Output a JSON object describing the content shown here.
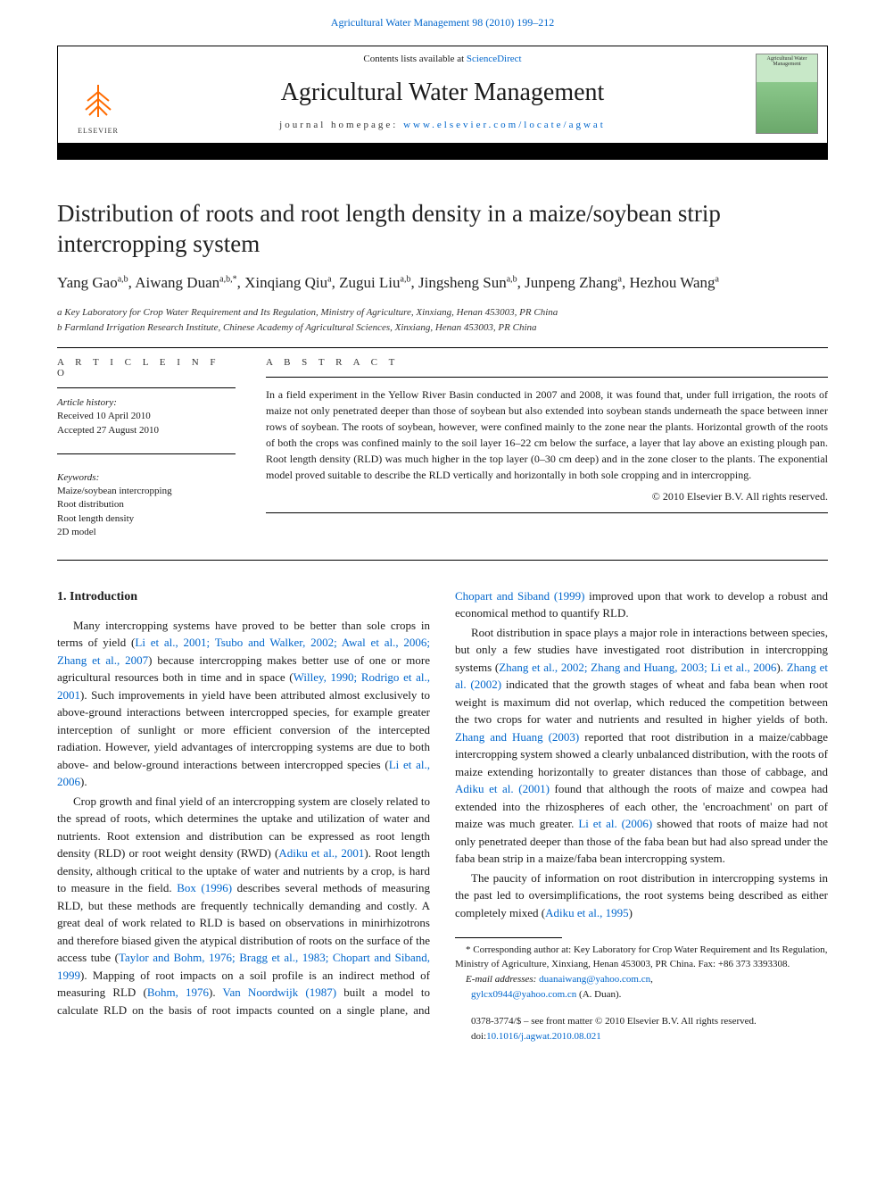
{
  "top_citation": "Agricultural Water Management 98 (2010) 199–212",
  "header": {
    "contents_prefix": "Contents lists available at ",
    "contents_link": "ScienceDirect",
    "journal": "Agricultural Water Management",
    "homepage_prefix": "journal homepage: ",
    "homepage_link": "www.elsevier.com/locate/agwat",
    "publisher": "ELSEVIER",
    "cover_label": "Agricultural Water Management"
  },
  "title": "Distribution of roots and root length density in a maize/soybean strip intercropping system",
  "authors_html": "Yang Gao<sup>a,b</sup>, Aiwang Duan<sup>a,b,*</sup>, Xinqiang Qiu<sup>a</sup>, Zugui Liu<sup>a,b</sup>, Jingsheng Sun<sup>a,b</sup>, Junpeng Zhang<sup>a</sup>, Hezhou Wang<sup>a</sup>",
  "affiliations": [
    "a Key Laboratory for Crop Water Requirement and Its Regulation, Ministry of Agriculture, Xinxiang, Henan 453003, PR China",
    "b Farmland Irrigation Research Institute, Chinese Academy of Agricultural Sciences, Xinxiang, Henan 453003, PR China"
  ],
  "labels": {
    "article_info": "A R T I C L E   I N F O",
    "abstract": "A B S T R A C T",
    "history": "Article history:",
    "keywords": "Keywords:"
  },
  "history": [
    "Received 10 April 2010",
    "Accepted 27 August 2010"
  ],
  "keywords": [
    "Maize/soybean intercropping",
    "Root distribution",
    "Root length density",
    "2D model"
  ],
  "abstract": "In a field experiment in the Yellow River Basin conducted in 2007 and 2008, it was found that, under full irrigation, the roots of maize not only penetrated deeper than those of soybean but also extended into soybean stands underneath the space between inner rows of soybean. The roots of soybean, however, were confined mainly to the zone near the plants. Horizontal growth of the roots of both the crops was confined mainly to the soil layer 16–22 cm below the surface, a layer that lay above an existing plough pan. Root length density (RLD) was much higher in the top layer (0–30 cm deep) and in the zone closer to the plants. The exponential model proved suitable to describe the RLD vertically and horizontally in both sole cropping and in intercropping.",
  "copyright": "© 2010 Elsevier B.V. All rights reserved.",
  "section_heading": "1.  Introduction",
  "paragraphs": {
    "p1_a": "Many intercropping systems have proved to be better than sole crops in terms of yield (",
    "p1_l1": "Li et al., 2001; Tsubo and Walker, 2002; Awal et al., 2006; Zhang et al., 2007",
    "p1_b": ") because intercropping makes better use of one or more agricultural resources both in time and in space (",
    "p1_l2": "Willey, 1990; Rodrigo et al., 2001",
    "p1_c": "). Such improvements in yield have been attributed almost exclusively to above-ground interactions between intercropped species, for example greater interception of sunlight or more efficient conversion of the intercepted radiation. However, yield advantages of intercropping systems are due to both above- and below-ground interactions between intercropped species (",
    "p1_l3": "Li et al., 2006",
    "p1_d": ").",
    "p2_a": "Crop growth and final yield of an intercropping system are closely related to the spread of roots, which determines the uptake and utilization of water and nutrients. Root extension and distribution can be expressed as root length density (RLD) or root weight density (RWD) (",
    "p2_l1": "Adiku et al., 2001",
    "p2_b": "). Root length density, although critical to the uptake of water and nutrients by a crop, is hard to measure in the field. ",
    "p2_l2": "Box (1996)",
    "p2_c": " describes several methods of measuring RLD, but these methods are frequently technically demanding and costly. A great deal of work related to RLD is based on observations in minirhizotrons and therefore biased given the atypical distribution of roots on the surface of the access tube (",
    "p2_l3": "Taylor and Bohm, 1976; Bragg et al., 1983; Chopart and Siband, 1999",
    "p2_d": "). Mapping of root impacts on a soil profile is an indirect method of measuring RLD (",
    "p2_l4": "Bohm, 1976",
    "p2_e": "). ",
    "p2_l5": "Van Noordwijk (1987)",
    "p2_f": " built a model to calculate RLD on the basis of root impacts counted on a single plane, and ",
    "p2_l6": "Chopart and Siband (1999)",
    "p2_g": " improved upon that work to develop a robust and economical method to quantify RLD.",
    "p3_a": "Root distribution in space plays a major role in interactions between species, but only a few studies have investigated root distribution in intercropping systems (",
    "p3_l1": "Zhang et al., 2002; Zhang and Huang, 2003; Li et al., 2006",
    "p3_b": "). ",
    "p3_l2": "Zhang et al. (2002)",
    "p3_c": " indicated that the growth stages of wheat and faba bean when root weight is maximum did not overlap, which reduced the competition between the two crops for water and nutrients and resulted in higher yields of both. ",
    "p3_l3": "Zhang and Huang (2003)",
    "p3_d": " reported that root distribution in a maize/cabbage intercropping system showed a clearly unbalanced distribution, with the roots of maize extending horizontally to greater distances than those of cabbage, and ",
    "p3_l4": "Adiku et al. (2001)",
    "p3_e": " found that although the roots of maize and cowpea had extended into the rhizospheres of each other, the 'encroachment' on part of maize was much greater. ",
    "p3_l5": "Li et al. (2006)",
    "p3_f": " showed that roots of maize had not only penetrated deeper than those of the faba bean but had also spread under the faba bean strip in a maize/faba bean intercropping system.",
    "p4_a": "The paucity of information on root distribution in intercropping systems in the past led to oversimplifications, the root systems being described as either completely mixed (",
    "p4_l1": "Adiku et al., 1995",
    "p4_b": ")"
  },
  "footnote": {
    "star": "* Corresponding author at: Key Laboratory for Crop Water Requirement and Its Regulation, Ministry of Agriculture, Xinxiang, Henan 453003, PR China. Fax: +86 373 3393308.",
    "email_label": "E-mail addresses: ",
    "email1": "duanaiwang@yahoo.com.cn",
    "comma": ", ",
    "email2": "gylcx0944@yahoo.com.cn",
    "tail": " (A. Duan)."
  },
  "footer": {
    "line1": "0378-3774/$ – see front matter © 2010 Elsevier B.V. All rights reserved.",
    "doi_prefix": "doi:",
    "doi": "10.1016/j.agwat.2010.08.021"
  },
  "colors": {
    "link": "#0066cc",
    "text": "#1a1a1a",
    "elsevier_orange": "#ff6b00"
  }
}
